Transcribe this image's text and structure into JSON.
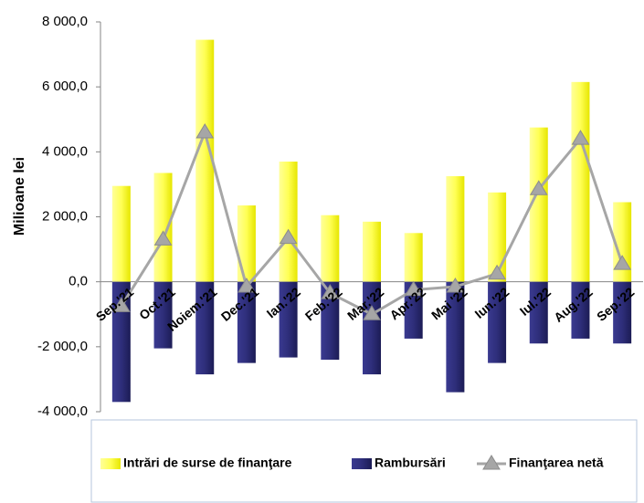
{
  "chart_data": {
    "type": "bar-line",
    "y_axis_label": "Milioane lei",
    "categories": [
      "Sep.'21",
      "Oct.'21",
      "Noiem.'21",
      "Dec.'21",
      "Ian.'22",
      "Feb.'22",
      "Mar.'22",
      "Apr.'22",
      "Mai '22",
      "Iun.'22",
      "Iul.'22",
      "Aug.'22",
      "Sep.'22"
    ],
    "series": [
      {
        "name": "Intrări de surse de finanţare",
        "type": "bar",
        "color": "#ffff66",
        "values": [
          2950,
          3350,
          7450,
          2350,
          3700,
          2050,
          1850,
          1500,
          3250,
          2750,
          4750,
          6150,
          2450
        ]
      },
      {
        "name": "Rambursări",
        "type": "bar",
        "color": "#2e2e7a",
        "values": [
          -3700,
          -2050,
          -2850,
          -2500,
          -2330,
          -2400,
          -2850,
          -1750,
          -3400,
          -2500,
          -1900,
          -1750,
          -1900
        ]
      },
      {
        "name": "Finanţarea netă",
        "type": "line",
        "color": "#a6a6a6",
        "values": [
          -750,
          1300,
          4600,
          -150,
          1350,
          -350,
          -1000,
          -250,
          -150,
          250,
          2850,
          4400,
          550
        ]
      }
    ],
    "ylim": [
      -4000,
      8000
    ],
    "yticks": [
      {
        "value": -4000,
        "label": "-4 000,0"
      },
      {
        "value": -2000,
        "label": "-2 000,0"
      },
      {
        "value": 0,
        "label": "0,0"
      },
      {
        "value": 2000,
        "label": "2 000,0"
      },
      {
        "value": 4000,
        "label": "4 000,0"
      },
      {
        "value": 6000,
        "label": "6 000,0"
      },
      {
        "value": 8000,
        "label": "8 000,0"
      }
    ],
    "legend": "bottom"
  }
}
